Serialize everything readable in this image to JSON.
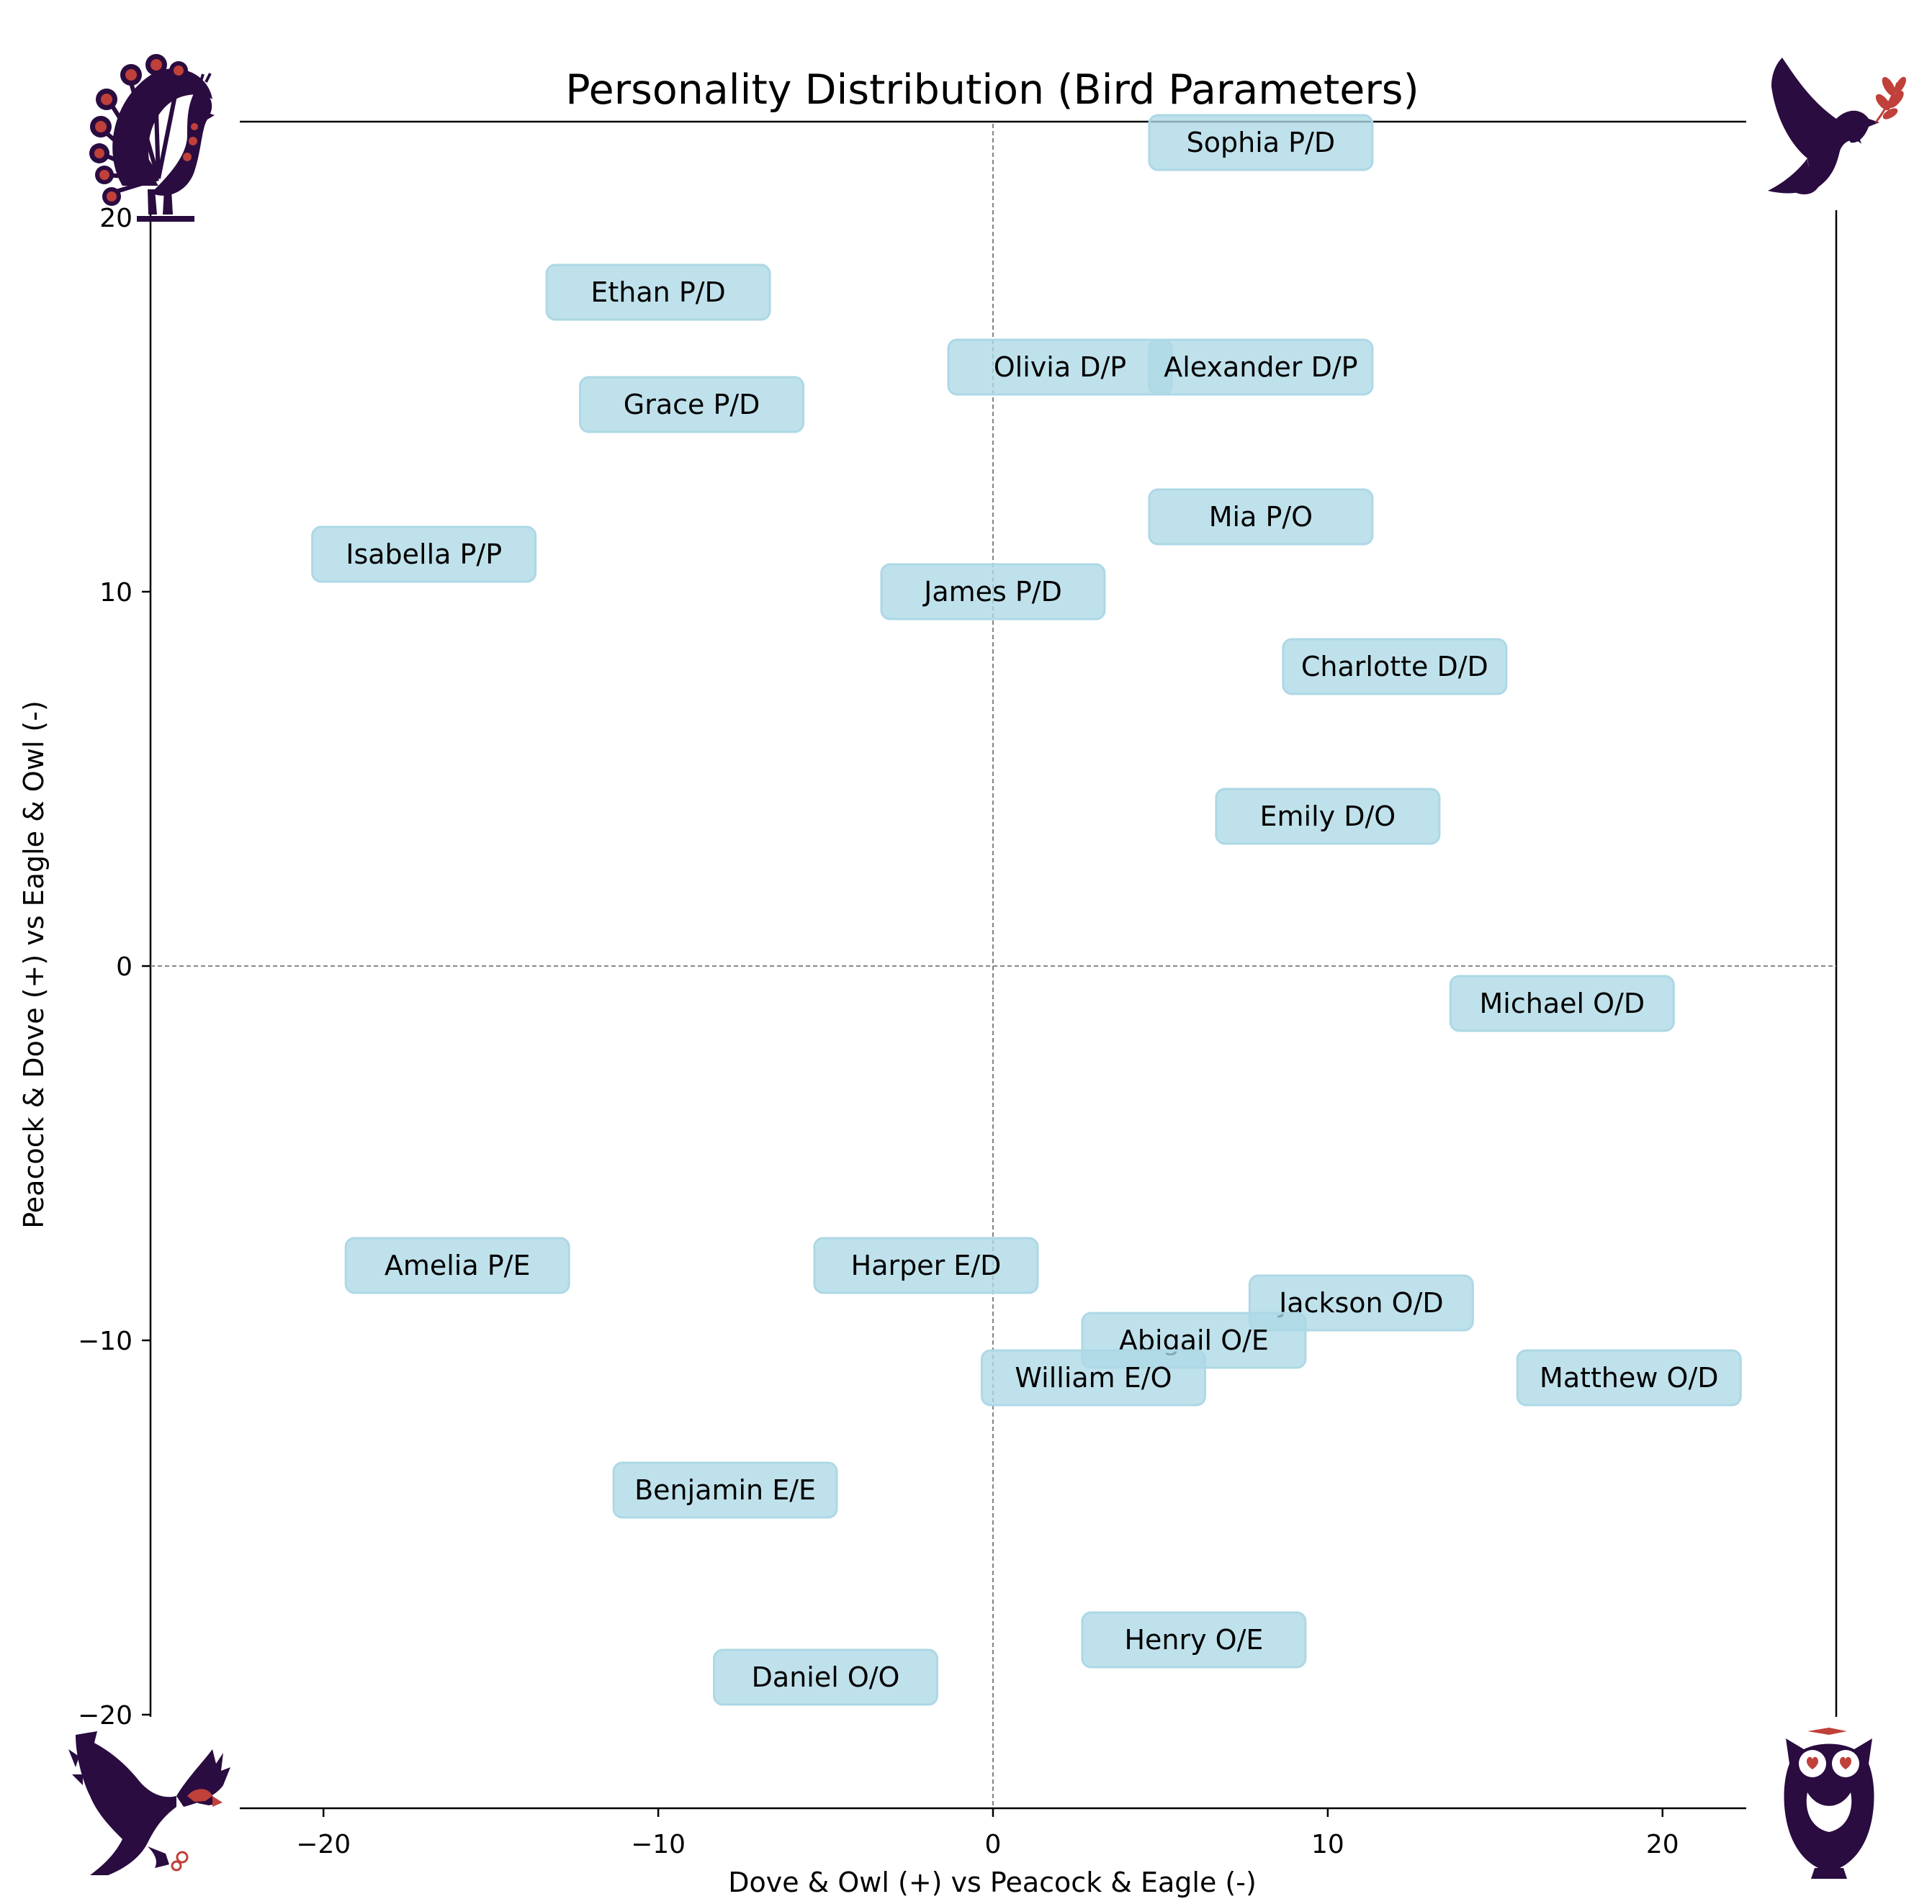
{
  "chart_data": {
    "type": "scatter",
    "title": "Personality Distribution (Bird Parameters)",
    "xlabel": "Dove & Owl (+) vs Peacock & Eagle (-)",
    "ylabel": "Peacock & Dove (+) vs Eagle & Owl (-)",
    "xlim": [
      -22.5,
      22.5
    ],
    "ylim": [
      -22.5,
      22.5
    ],
    "xticks": [
      -20,
      -10,
      0,
      10,
      20
    ],
    "yticks": [
      -20,
      -10,
      0,
      10,
      20
    ],
    "xtick_labels": [
      "−20",
      "−10",
      "0",
      "10",
      "20"
    ],
    "ytick_labels": [
      "−20",
      "−10",
      "0",
      "10",
      "20"
    ],
    "reference_lines": {
      "x": 0,
      "y": 0,
      "style": "dashed"
    },
    "grid": false,
    "box_color": "#add8e6",
    "icon_color": "#2a0c40",
    "accent_color": "#c0403a",
    "corner_icons": {
      "top_left": "peacock-icon",
      "top_right": "dove-icon",
      "bottom_left": "eagle-icon",
      "bottom_right": "owl-icon"
    },
    "points": [
      {
        "label": "Sophia P/D",
        "x": 8,
        "y": 22
      },
      {
        "label": "Ethan P/D",
        "x": -10,
        "y": 18
      },
      {
        "label": "Olivia D/P",
        "x": 2,
        "y": 16
      },
      {
        "label": "Alexander D/P",
        "x": 8,
        "y": 16
      },
      {
        "label": "Grace P/D",
        "x": -9,
        "y": 15
      },
      {
        "label": "Mia P/O",
        "x": 8,
        "y": 12
      },
      {
        "label": "Isabella P/P",
        "x": -17,
        "y": 11
      },
      {
        "label": "James P/D",
        "x": 0,
        "y": 10
      },
      {
        "label": "Charlotte D/D",
        "x": 12,
        "y": 8
      },
      {
        "label": "Emily D/O",
        "x": 10,
        "y": 4
      },
      {
        "label": "Michael O/D",
        "x": 17,
        "y": -1
      },
      {
        "label": "Amelia P/E",
        "x": -16,
        "y": -8
      },
      {
        "label": "Harper E/D",
        "x": -2,
        "y": -8
      },
      {
        "label": "Jackson O/D",
        "x": 11,
        "y": -9
      },
      {
        "label": "Abigail O/E",
        "x": 6,
        "y": -10
      },
      {
        "label": "William E/O",
        "x": 3,
        "y": -11
      },
      {
        "label": "Matthew O/D",
        "x": 19,
        "y": -11
      },
      {
        "label": "Benjamin E/E",
        "x": -8,
        "y": -14
      },
      {
        "label": "Henry O/E",
        "x": 6,
        "y": -18
      },
      {
        "label": "Daniel O/O",
        "x": -5,
        "y": -19
      }
    ]
  }
}
